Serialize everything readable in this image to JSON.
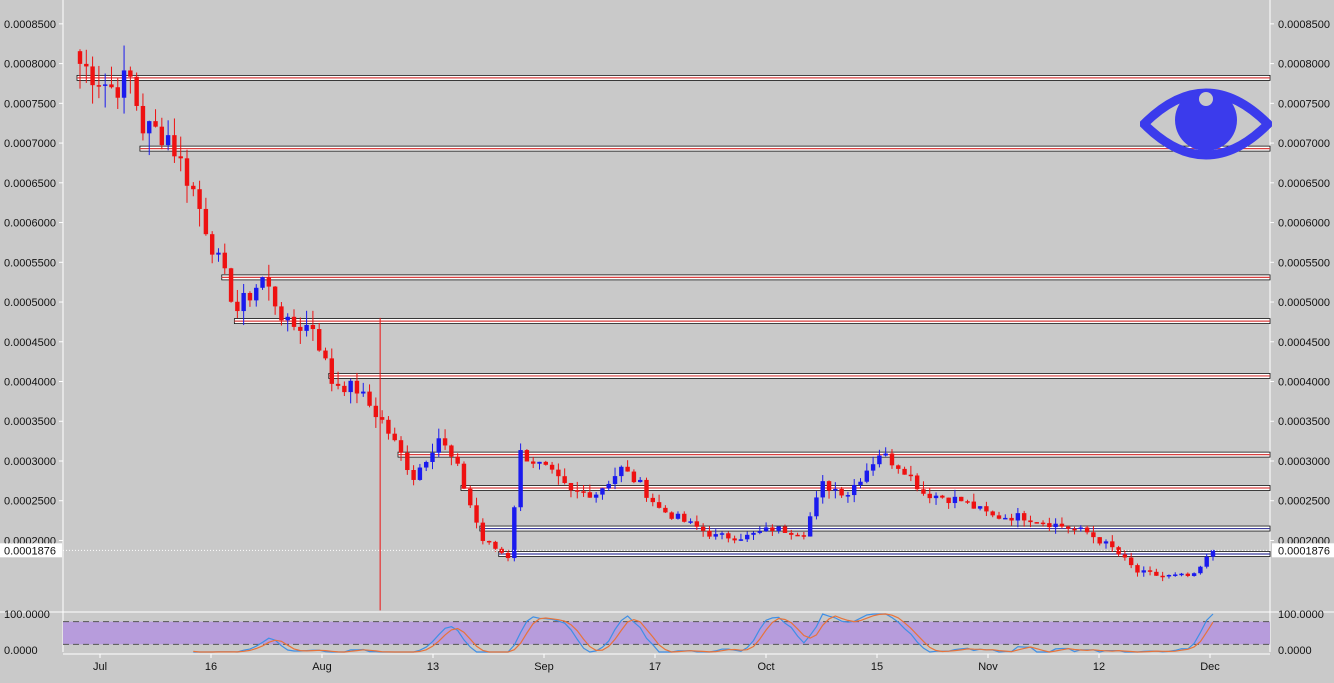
{
  "chart_data": {
    "type": "candlestick",
    "title": "",
    "xlabel": "",
    "ylabel": "",
    "ylim": [
      0.00011,
      0.00088
    ],
    "grid": false,
    "x_tick_labels": [
      "Jul",
      "16",
      "Aug",
      "13",
      "Sep",
      "17",
      "Oct",
      "15",
      "Nov",
      "12",
      "Dec"
    ],
    "y_tick_labels": [
      "0.0002000",
      "0.0002500",
      "0.0003000",
      "0.0003500",
      "0.0004000",
      "0.0004500",
      "0.0005000",
      "0.0005500",
      "0.0006000",
      "0.0006500",
      "0.0007000",
      "0.0007500",
      "0.0008000",
      "0.0008500"
    ],
    "last_price": 0.0001876,
    "last_price_label": "0.0001876",
    "up_color": "#1a1aee",
    "down_color": "#ee1111",
    "support_resistance_levels": [
      0.000782,
      0.000693,
      0.000531,
      0.000476,
      0.000407,
      0.000308,
      0.000266,
      0.000215,
      0.000183
    ],
    "oscillator": {
      "name": "stochastic",
      "ylim": [
        0,
        100
      ],
      "tick_labels": [
        "100.0000",
        "0.0000"
      ],
      "band": [
        20,
        80
      ],
      "band_color": "#b79cdc",
      "k_color": "#3f8fe6",
      "d_color": "#e8733a"
    },
    "price_anchors": [
      [
        0,
        0.0008
      ],
      [
        5,
        0.00077
      ],
      [
        8,
        0.00078
      ],
      [
        10,
        0.00072
      ],
      [
        14,
        0.00071
      ],
      [
        18,
        0.00064
      ],
      [
        22,
        0.00055
      ],
      [
        25,
        0.00049
      ],
      [
        29,
        0.00053
      ],
      [
        33,
        0.00047
      ],
      [
        37,
        0.00047
      ],
      [
        40,
        0.0004
      ],
      [
        44,
        0.00039
      ],
      [
        48,
        0.00035
      ],
      [
        53,
        0.00028
      ],
      [
        57,
        0.00033
      ],
      [
        60,
        0.00029
      ],
      [
        64,
        0.0002
      ],
      [
        68,
        0.00018
      ],
      [
        70,
        0.00031
      ],
      [
        74,
        0.00029
      ],
      [
        78,
        0.00026
      ],
      [
        82,
        0.00026
      ],
      [
        86,
        0.00029
      ],
      [
        89,
        0.00027
      ],
      [
        92,
        0.00024
      ],
      [
        97,
        0.00022
      ],
      [
        101,
        0.000205
      ],
      [
        106,
        0.000205
      ],
      [
        110,
        0.000215
      ],
      [
        115,
        0.00021
      ],
      [
        118,
        0.00027
      ],
      [
        122,
        0.00026
      ],
      [
        127,
        0.00031
      ],
      [
        131,
        0.00029
      ],
      [
        134,
        0.00026
      ],
      [
        140,
        0.00025
      ],
      [
        145,
        0.00023
      ],
      [
        150,
        0.00023
      ],
      [
        155,
        0.00022
      ],
      [
        160,
        0.00021
      ],
      [
        164,
        0.00019
      ],
      [
        168,
        0.00016
      ],
      [
        172,
        0.000155
      ],
      [
        177,
        0.000155
      ],
      [
        180,
        0.0001876
      ]
    ]
  }
}
